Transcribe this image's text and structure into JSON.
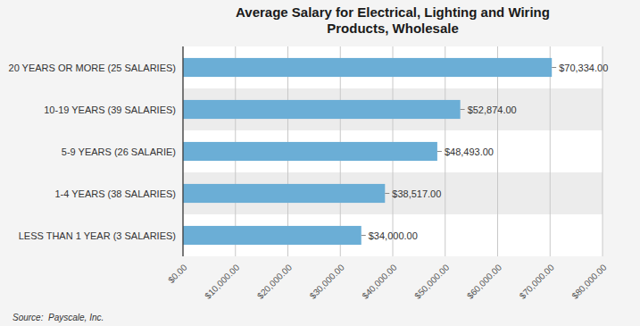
{
  "chart_data": {
    "type": "bar",
    "orientation": "horizontal",
    "title": "Average Salary for Electrical, Lighting and Wiring\nProducts, Wholesale",
    "categories": [
      "LESS THAN 1 YEAR (3 SALARIES)",
      "1-4 YEARS (38 SALARIES)",
      "5-9 YEARS (26 SALARIE)",
      "10-19 YEARS (39 SALARIES)",
      "20 YEARS OR MORE (25 SALARIES)"
    ],
    "values": [
      34000,
      38517,
      48493,
      52874,
      70334
    ],
    "value_labels": [
      "$34,000.00",
      "$38,517.00",
      "$48,493.00",
      "$52,874.00",
      "$70,334.00"
    ],
    "data_labels": true,
    "color": "#6BAED6",
    "xlim": [
      0,
      80000
    ],
    "xticks": [
      {
        "value": 0,
        "label": "$0.00"
      },
      {
        "value": 10000,
        "label": "$10,000.00"
      },
      {
        "value": 20000,
        "label": "$20,000.00"
      },
      {
        "value": 30000,
        "label": "$30,000.00"
      },
      {
        "value": 40000,
        "label": "$40,000.00"
      },
      {
        "value": 50000,
        "label": "$50,000.00"
      },
      {
        "value": 60000,
        "label": "$60,000.00"
      },
      {
        "value": 70000,
        "label": "$70,000.00"
      },
      {
        "value": 80000,
        "label": "$80,000.00"
      }
    ],
    "grid": true,
    "annotations": [
      "Source:  Payscale, Inc."
    ]
  }
}
